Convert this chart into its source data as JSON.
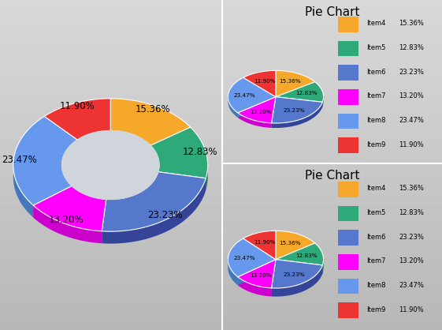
{
  "labels": [
    "Item4",
    "Item5",
    "Item6",
    "Item7",
    "Item8",
    "Item9"
  ],
  "values": [
    15.36,
    12.83,
    23.23,
    13.2,
    23.47,
    11.9
  ],
  "colors_top": [
    "#F5A82A",
    "#2EAA7A",
    "#5577CC",
    "#FF00FF",
    "#6699EE",
    "#EE3333"
  ],
  "colors_side": [
    "#C07010",
    "#1A7A50",
    "#334499",
    "#CC00CC",
    "#4477BB",
    "#AA1111"
  ],
  "colors_inner_dark": [
    "#7755AA",
    "#555599",
    "#334488",
    "#553399",
    "#4466AA",
    "#664488"
  ],
  "title": "Pie Chart",
  "bg_color": "#C8CDD5",
  "right_bg": "#C0C5CD",
  "percentages": [
    "15.36%",
    "12.83%",
    "23.23%",
    "13.20%",
    "23.47%",
    "11.90%"
  ],
  "pct_values": [
    "15.36 %",
    "12.83 %",
    "23.23 %",
    "13.20 %",
    "23.47 %",
    "11.90 %"
  ]
}
